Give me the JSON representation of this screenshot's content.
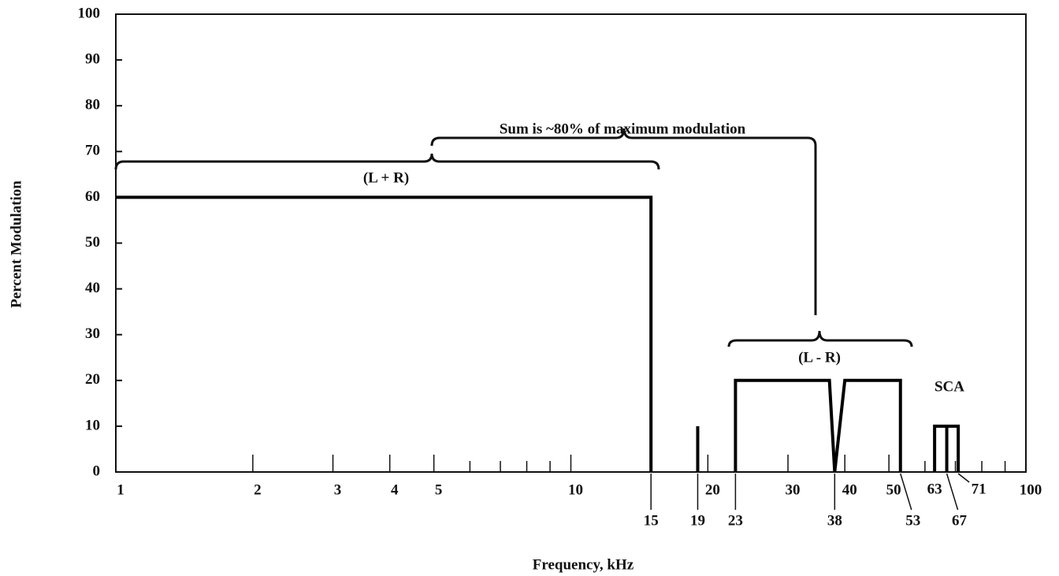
{
  "chart_data": {
    "type": "line",
    "xlabel": "Frequency, kHz",
    "ylabel": "Percent Modulation",
    "xscale": "log",
    "xlim": [
      1,
      100
    ],
    "ylim": [
      0,
      100
    ],
    "yticks": [
      0,
      10,
      20,
      30,
      40,
      50,
      60,
      70,
      80,
      90,
      100
    ],
    "xticks": [
      1,
      2,
      3,
      4,
      5,
      10,
      20,
      30,
      40,
      50,
      100
    ],
    "xminor": [
      6,
      7,
      8,
      9,
      60,
      70,
      80,
      90
    ],
    "x_annotations": [
      15,
      19,
      23,
      38,
      53,
      63,
      67,
      71
    ],
    "annotations": [
      "Sum is ~80% of maximum modulation",
      "(L + R)",
      "(L - R)",
      "SCA"
    ],
    "color": "#000000",
    "series": [
      {
        "x": [
          1,
          15,
          15
        ],
        "values": [
          60,
          60,
          0
        ]
      },
      {
        "x": [
          19,
          19
        ],
        "values": [
          0,
          10
        ]
      },
      {
        "x": [
          23,
          23,
          37,
          38,
          40,
          53,
          53
        ],
        "values": [
          0,
          20,
          20,
          0,
          20,
          20,
          0
        ]
      },
      {
        "x": [
          63,
          63,
          71,
          71
        ],
        "values": [
          0,
          10,
          10,
          0
        ]
      },
      {
        "x": [
          67,
          67
        ],
        "values": [
          0,
          10
        ]
      }
    ]
  }
}
